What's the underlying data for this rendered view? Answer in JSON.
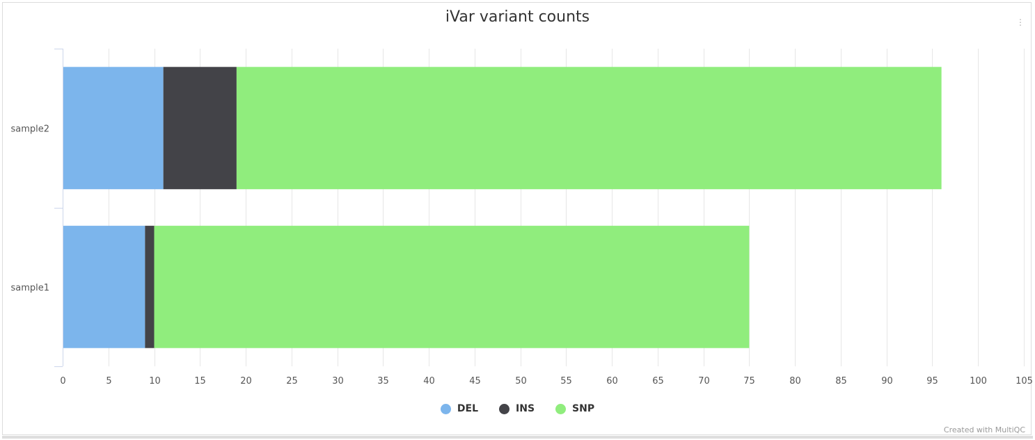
{
  "chart_data": {
    "type": "bar",
    "orientation": "horizontal",
    "stacked": true,
    "title": "iVar variant counts",
    "categories": [
      "sample2",
      "sample1"
    ],
    "series": [
      {
        "name": "DEL",
        "color": "#7cb5ec",
        "values": [
          11,
          9
        ]
      },
      {
        "name": "INS",
        "color": "#434348",
        "values": [
          8,
          1
        ]
      },
      {
        "name": "SNP",
        "color": "#90ed7d",
        "values": [
          77,
          65
        ]
      }
    ],
    "xlim": [
      0,
      105
    ],
    "xticks": [
      0,
      5,
      10,
      15,
      20,
      25,
      30,
      35,
      40,
      45,
      50,
      55,
      60,
      65,
      70,
      75,
      80,
      85,
      90,
      95,
      100,
      105
    ],
    "grid": true,
    "legend_position": "bottom-center"
  },
  "ui": {
    "menu_icon": "⋮",
    "credit": "Created with MultiQC"
  }
}
